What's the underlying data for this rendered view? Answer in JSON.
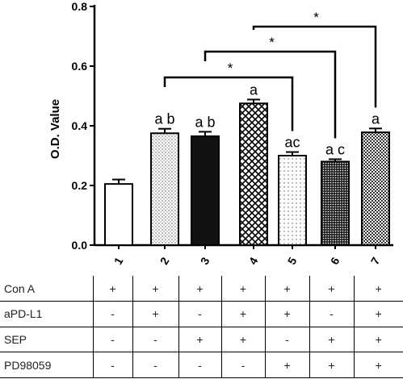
{
  "chart_data": {
    "type": "bar",
    "ylabel": "O.D. Value",
    "ylim": [
      0,
      0.8
    ],
    "yticks": [
      "0.0",
      "0.2",
      "0.4",
      "0.6",
      "0.8"
    ],
    "categories": [
      "1",
      "2",
      "3",
      "4",
      "5",
      "6",
      "7"
    ],
    "values": [
      0.205,
      0.375,
      0.365,
      0.475,
      0.3,
      0.28,
      0.378
    ],
    "errors": [
      0.015,
      0.015,
      0.015,
      0.013,
      0.012,
      0.008,
      0.013
    ],
    "letters": [
      "",
      "a b",
      "a b",
      "a",
      "ac",
      "a c",
      "a"
    ],
    "patterns": [
      "white",
      "dots",
      "black",
      "crosshatch",
      "sparse-dots",
      "dense-dots",
      "checker"
    ],
    "significance": [
      {
        "from": 2,
        "to": 5,
        "label": "*"
      },
      {
        "from": 3,
        "to": 6,
        "label": "*"
      },
      {
        "from": 4,
        "to": 7,
        "label": "*"
      }
    ]
  },
  "table": {
    "rows": [
      {
        "label": "Con A",
        "cells": [
          "+",
          "+",
          "+",
          "+",
          "+",
          "+",
          "+"
        ]
      },
      {
        "label": "aPD-L1",
        "cells": [
          "-",
          "+",
          "-",
          "+",
          "+",
          "-",
          "+"
        ]
      },
      {
        "label": "SEP",
        "cells": [
          "-",
          "-",
          "+",
          "+",
          "-",
          "+",
          "+"
        ]
      },
      {
        "label": "PD98059",
        "cells": [
          "-",
          "-",
          "-",
          "-",
          "+",
          "+",
          "+"
        ]
      }
    ]
  }
}
